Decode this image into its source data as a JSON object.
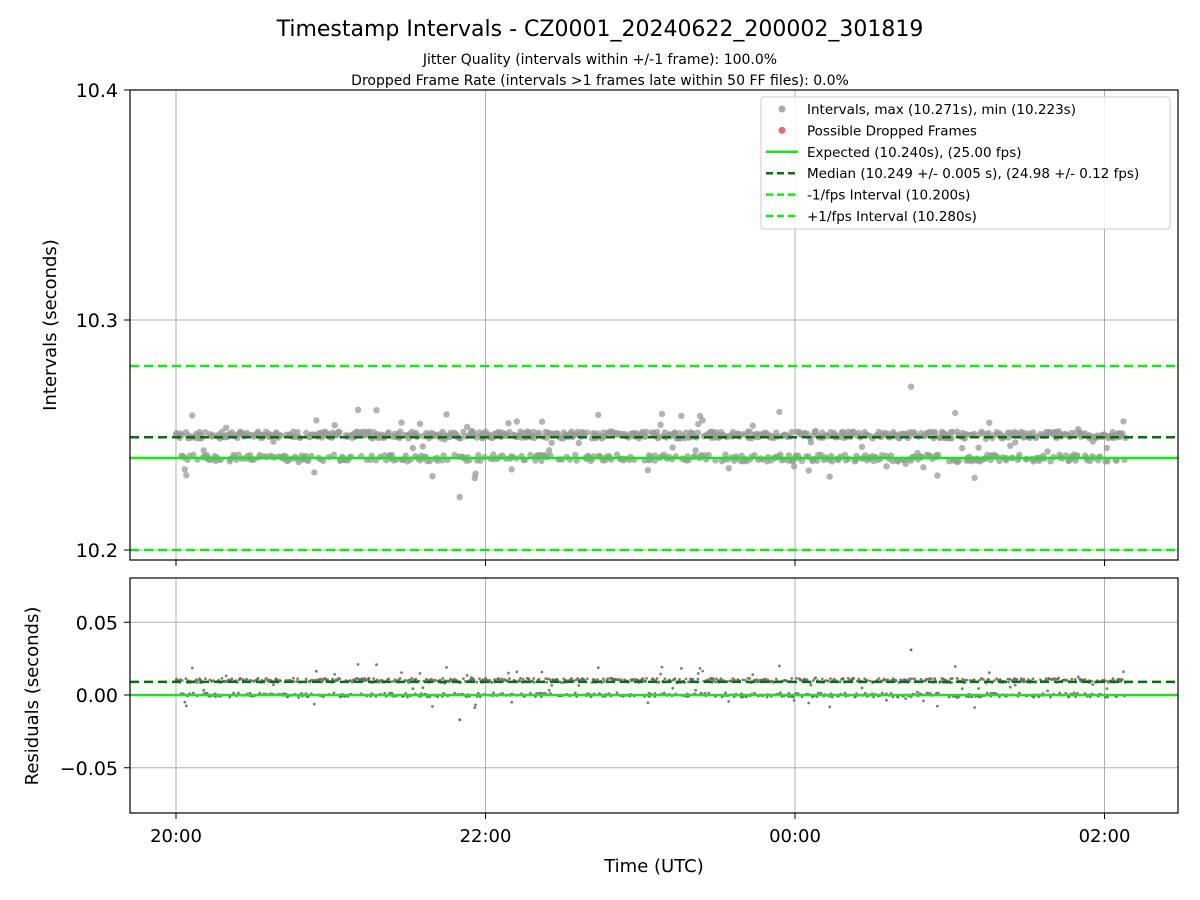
{
  "title": "Timestamp Intervals - CZ0001_20240622_200002_301819",
  "subtitle_lines": [
    "Jitter Quality (intervals within +/-1 frame): 100.0%",
    "Dropped Frame Rate (intervals >1 frames late within 50 FF files): 0.0%"
  ],
  "colors": {
    "points": "#999999",
    "residual_points": "#666666",
    "dropped": "#e85050",
    "expected": "#17e617",
    "median": "#0a6e0a",
    "fps_bound": "#17e617",
    "grid": "#b0b0b0"
  },
  "chart_data": [
    {
      "type": "scatter",
      "panel": "intervals",
      "ylabel": "Intervals (seconds)",
      "xlabel": "",
      "xlim": [
        "19:50",
        "02:30"
      ],
      "ylim": [
        10.2,
        10.4
      ],
      "yticks": [
        "10.2",
        "10.3",
        "10.4"
      ],
      "xticks": [
        "20:00",
        "22:00",
        "00:00",
        "02:00"
      ],
      "grid": true,
      "legend_position": "top-right",
      "legend": [
        {
          "label": "Intervals, max (10.271s), min (10.223s)",
          "kind": "point",
          "color": "#999999"
        },
        {
          "label": "Possible Dropped Frames",
          "kind": "point",
          "color": "#e85050"
        },
        {
          "label": "Expected (10.240s), (25.00 fps)",
          "kind": "solid",
          "color": "#17e617"
        },
        {
          "label": "Median (10.249 +/- 0.005 s), (24.98 +/- 0.12 fps)",
          "kind": "dashed",
          "color": "#0a6e0a"
        },
        {
          "label": "-1/fps Interval (10.200s)",
          "kind": "dashed",
          "color": "#17e617"
        },
        {
          "label": "+1/fps Interval (10.280s)",
          "kind": "dashed",
          "color": "#17e617"
        }
      ],
      "reference_lines": {
        "expected": 10.24,
        "median": 10.249,
        "minus_one_fps": 10.2,
        "plus_one_fps": 10.28
      },
      "series": [
        {
          "name": "Intervals",
          "time_range": [
            "20:00",
            "02:08"
          ],
          "bands": [
            10.24,
            10.25
          ],
          "max": 10.271,
          "min": 10.223
        },
        {
          "name": "Possible Dropped Frames",
          "values": []
        }
      ]
    },
    {
      "type": "scatter",
      "panel": "residuals",
      "ylabel": "Residuals (seconds)",
      "xlabel": "Time (UTC)",
      "xlim": [
        "19:50",
        "02:30"
      ],
      "ylim": [
        -0.08,
        0.08
      ],
      "yticks": [
        "0.05",
        "0.00",
        "−0.05"
      ],
      "xticks": [
        "20:00",
        "22:00",
        "00:00",
        "02:00"
      ],
      "grid": true,
      "reference_lines": {
        "zero": 0.0,
        "median_offset": 0.009
      },
      "series": [
        {
          "time_range": [
            "20:00",
            "02:08"
          ],
          "bands": [
            0.0,
            0.01
          ],
          "max": 0.031,
          "min": -0.017
        }
      ]
    }
  ]
}
